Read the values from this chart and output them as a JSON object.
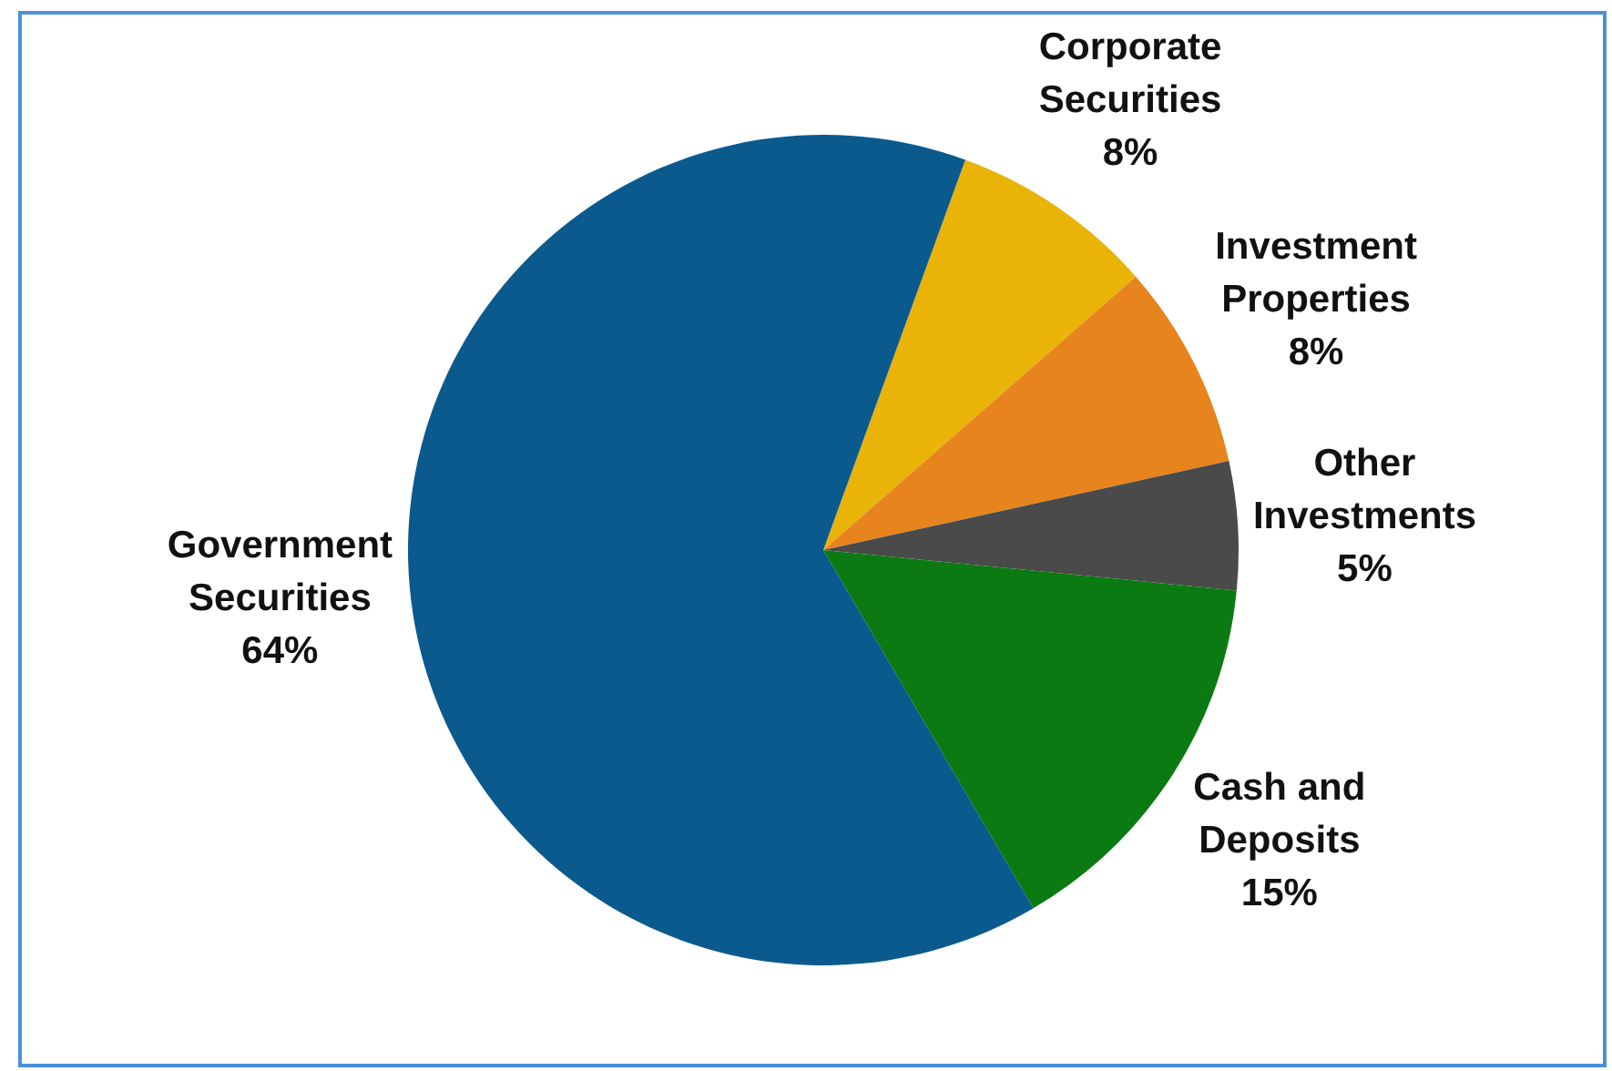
{
  "chart_data": {
    "type": "pie",
    "categories": [
      "Corporate Securities",
      "Investment Properties",
      "Other Investments",
      "Cash and Deposits",
      "Government Securities"
    ],
    "values": [
      8,
      8,
      5,
      15,
      64
    ],
    "colors": [
      "#eab308",
      "#e8841e",
      "#4a4a4a",
      "#0b7a12",
      "#0a5a8e"
    ],
    "value_labels": [
      "8%",
      "8%",
      "5%",
      "15%",
      "64%"
    ],
    "legend": false
  }
}
